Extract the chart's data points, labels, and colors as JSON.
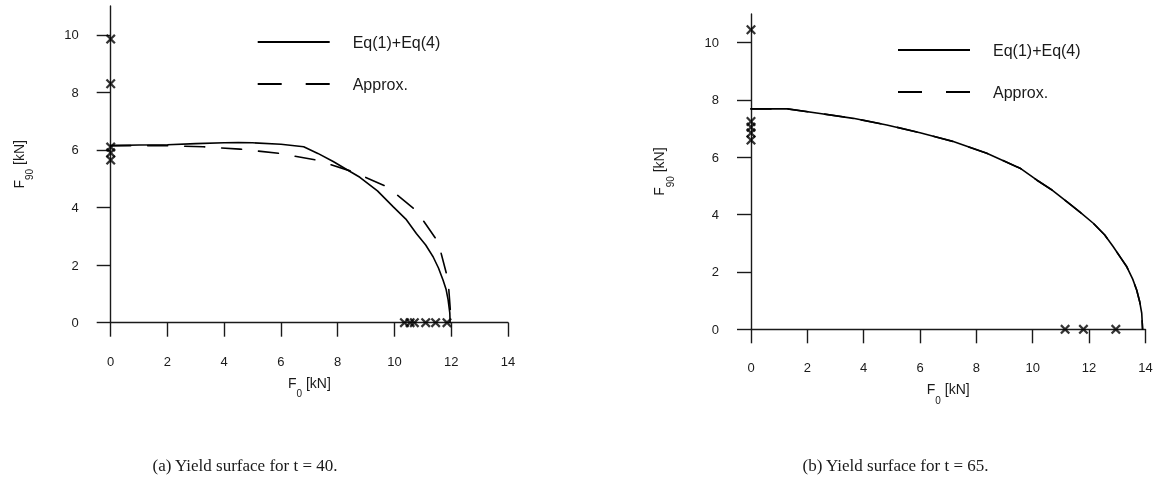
{
  "chart_data": [
    {
      "type": "line",
      "title": "(a) Yield surface for t = 40.",
      "xlabel": "F$_{0}$ [kN]",
      "ylabel": "F$_{90}$ [kN]",
      "xlim": [
        0,
        14
      ],
      "ylim": [
        0,
        11
      ],
      "xticks": [
        0,
        2,
        4,
        6,
        8,
        10,
        12,
        14
      ],
      "yticks": [
        0,
        2,
        4,
        6,
        8,
        10
      ],
      "legend": "top right",
      "series": [
        {
          "name": "Eq(1)+Eq(4)",
          "color": "#000000",
          "line_style": "solid",
          "marker": "none",
          "x": [
            0,
            1,
            2,
            3,
            4,
            4.5,
            5,
            6,
            6.8,
            7.3,
            7.84,
            8.3,
            8.78,
            9.4,
            9.95,
            10.4,
            10.77,
            11.1,
            11.36,
            11.55,
            11.71,
            11.82,
            11.89,
            11.95,
            11.96
          ],
          "values": [
            6.15,
            6.17,
            6.18,
            6.22,
            6.25,
            6.26,
            6.25,
            6.2,
            6.11,
            5.88,
            5.6,
            5.33,
            5.05,
            4.58,
            4.03,
            3.6,
            3.1,
            2.7,
            2.29,
            1.9,
            1.48,
            1.15,
            0.79,
            0.33,
            0
          ]
        },
        {
          "name": "Approx.",
          "color": "#000000",
          "line_style": "dashed",
          "marker": "none",
          "x": [
            0,
            1.85,
            3.26,
            4.55,
            5.94,
            7.25,
            8.54,
            9.74,
            10.77,
            11.54,
            11.89,
            12
          ],
          "values": [
            6.15,
            6.15,
            6.11,
            6.03,
            5.88,
            5.65,
            5.24,
            4.72,
            3.89,
            2.8,
            1.48,
            0
          ]
        },
        {
          "type": "scatter",
          "color": "#000000",
          "marker": "cross",
          "x": [
            0,
            0,
            0,
            0,
            0,
            10.35,
            10.55,
            10.7,
            11.1,
            11.45,
            11.85
          ],
          "values": [
            9.85,
            8.3,
            6.1,
            5.9,
            5.65,
            0,
            0,
            0,
            0,
            0,
            0
          ]
        }
      ]
    },
    {
      "type": "line",
      "title": "(b) Yield surface for t = 65.",
      "xlabel": "F$_{0}$ [kN]",
      "ylabel": "F$_{90}$ [kN]",
      "xlim": [
        0,
        14
      ],
      "ylim": [
        0,
        11
      ],
      "xticks": [
        0,
        2,
        4,
        6,
        8,
        10,
        12,
        14
      ],
      "yticks": [
        0,
        2,
        4,
        6,
        8,
        10
      ],
      "legend": "top right",
      "series": [
        {
          "name": "Eq(1)+Eq(4)",
          "color": "#000000",
          "line_style": "solid",
          "marker": "none",
          "x": [
            0,
            1.3,
            2.45,
            3.63,
            4.82,
            6,
            7.18,
            8.37,
            9.55,
            10.14,
            10.7,
            11.21,
            11.7,
            12.15,
            12.55,
            12.86,
            13.12,
            13.34,
            13.55,
            13.69,
            13.8,
            13.87,
            13.9
          ],
          "values": [
            7.69,
            7.69,
            7.53,
            7.36,
            7.13,
            6.86,
            6.55,
            6.14,
            5.62,
            5.21,
            4.85,
            4.45,
            4.07,
            3.7,
            3.3,
            2.88,
            2.5,
            2.18,
            1.75,
            1.37,
            0.95,
            0.56,
            0
          ]
        },
        {
          "name": "Approx.",
          "color": "#000000",
          "line_style": "dashed",
          "marker": "none",
          "x": [
            0,
            1.3,
            2.45,
            3.63,
            4.82,
            6,
            7.18,
            8.37,
            9.55,
            10.14,
            10.7,
            11.21,
            11.7,
            12.15,
            12.55,
            12.86,
            13.12,
            13.34,
            13.55,
            13.69,
            13.8,
            13.87,
            13.9
          ],
          "values": [
            7.69,
            7.69,
            7.53,
            7.36,
            7.13,
            6.86,
            6.55,
            6.14,
            5.62,
            5.21,
            4.85,
            4.45,
            4.07,
            3.7,
            3.3,
            2.88,
            2.5,
            2.18,
            1.75,
            1.37,
            0.95,
            0.56,
            0
          ]
        },
        {
          "type": "scatter",
          "color": "#000000",
          "marker": "cross",
          "x": [
            0,
            0,
            0,
            0,
            0,
            11.15,
            11.8,
            12.95
          ],
          "values": [
            10.45,
            7.25,
            7.05,
            6.85,
            6.6,
            0,
            0,
            0
          ]
        }
      ]
    }
  ]
}
